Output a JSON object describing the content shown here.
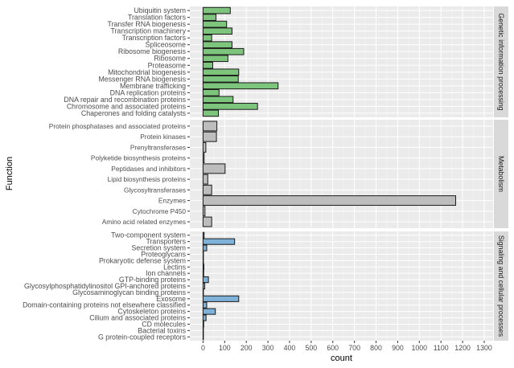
{
  "chart_data": {
    "type": "bar",
    "orientation": "horizontal",
    "xlabel": "count",
    "ylabel": "Function",
    "xlim": [
      -61,
      1341
    ],
    "xticks": [
      0,
      100,
      200,
      300,
      400,
      500,
      600,
      700,
      800,
      900,
      1000,
      1100,
      1200,
      1300
    ],
    "grid": true,
    "facets": [
      {
        "strip": "Genetic information processing",
        "color": "#7dc47d",
        "categories": [
          "Ubiquitin system",
          "Translation factors",
          "Transfer RNA biogenesis",
          "Transcription machinery",
          "Transcription factors",
          "Spliceosome",
          "Ribosome biogenesis",
          "Ribosome",
          "Proteasome",
          "Mitochondrial biogenesis",
          "Messenger RNA biogenesis",
          "Membrane trafficking",
          "DNA replication proteins",
          "DNA repair and recombination proteins",
          "Chromosome and associated proteins",
          "Chaperones and folding catalysts"
        ],
        "values": [
          126,
          60,
          109,
          134,
          40,
          134,
          188,
          115,
          45,
          165,
          163,
          347,
          74,
          139,
          252,
          71
        ]
      },
      {
        "strip": "Metabolism",
        "color": "#bdbdbd",
        "categories": [
          "Protein phosphatases and associated proteins",
          "Protein kinases",
          "Prenyltransferases",
          "Polyketide biosynthesis proteins",
          "Peptidases and inhibitors",
          "Lipid biosynthesis proteins",
          "Glycosyltransferases",
          "Enzymes",
          "Cytochrome P450",
          "Amino acid related enzymes"
        ],
        "values": [
          64,
          62,
          13,
          5,
          102,
          22,
          40,
          1168,
          9,
          40
        ]
      },
      {
        "strip": "Signaling and cellular processes",
        "color": "#7fb2d8",
        "categories": [
          "Two-component system",
          "Transporters",
          "Secretion system",
          "Proteoglycans",
          "Prokaryotic defense system",
          "Lectins",
          "Ion channels",
          "GTP-binding proteins",
          "Glycosylphosphatidylinositol GPI-anchored proteins",
          "Glycosaminoglycan binding proteins",
          "Exosome",
          "Domain-containing proteins not elsewhere classified",
          "Cytoskeleton proteins",
          "Cilium and associated proteins",
          "CD molecules",
          "Bacterial toxins",
          "G protein-coupled receptors"
        ],
        "values": [
          5,
          146,
          17,
          1,
          1,
          4,
          3,
          25,
          8,
          1,
          165,
          17,
          57,
          14,
          3,
          1,
          1
        ]
      }
    ]
  }
}
